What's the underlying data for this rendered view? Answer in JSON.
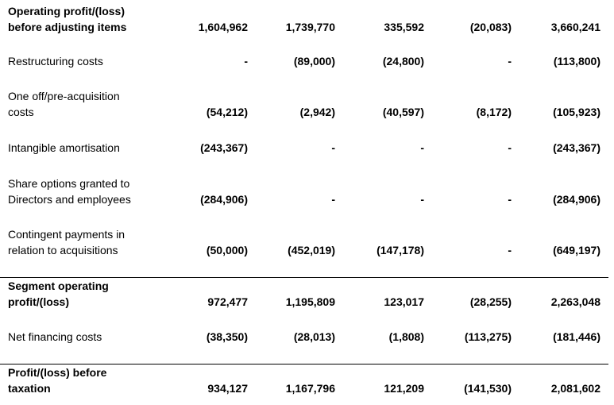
{
  "rows": [
    {
      "label_lines": [
        "Operating profit/(loss)",
        "before adjusting items"
      ],
      "bold": true,
      "values": [
        "1,604,962",
        "1,739,770",
        "335,592",
        "(20,083)",
        "3,660,241"
      ]
    },
    {
      "label_lines": [
        "Restructuring costs"
      ],
      "bold": false,
      "values": [
        "-",
        "(89,000)",
        "(24,800)",
        "-",
        "(113,800)"
      ]
    },
    {
      "label_lines": [
        "One off/pre-acquisition",
        "costs"
      ],
      "bold": false,
      "values": [
        "(54,212)",
        "(2,942)",
        "(40,597)",
        "(8,172)",
        "(105,923)"
      ]
    },
    {
      "label_lines": [
        "Intangible amortisation"
      ],
      "bold": false,
      "values": [
        "(243,367)",
        "-",
        "-",
        "-",
        "(243,367)"
      ]
    },
    {
      "label_lines": [
        "Share options granted to",
        "Directors and employees"
      ],
      "bold": false,
      "values": [
        "(284,906)",
        "-",
        "-",
        "-",
        "(284,906)"
      ]
    },
    {
      "label_lines": [
        "Contingent payments in",
        "relation to acquisitions"
      ],
      "bold": false,
      "values": [
        "(50,000)",
        "(452,019)",
        "(147,178)",
        "-",
        "(649,197)"
      ]
    },
    {
      "label_lines": [
        "Segment operating",
        "profit/(loss)"
      ],
      "bold": true,
      "values": [
        "972,477",
        "1,195,809",
        "123,017",
        "(28,255)",
        "2,263,048"
      ]
    },
    {
      "label_lines": [
        "Net financing costs"
      ],
      "bold": false,
      "values": [
        "(38,350)",
        "(28,013)",
        "(1,808)",
        "(113,275)",
        "(181,446)"
      ]
    },
    {
      "label_lines": [
        "Profit/(loss) before",
        "taxation"
      ],
      "bold": true,
      "values": [
        "934,127",
        "1,167,796",
        "121,209",
        "(141,530)",
        "2,081,602"
      ]
    }
  ]
}
